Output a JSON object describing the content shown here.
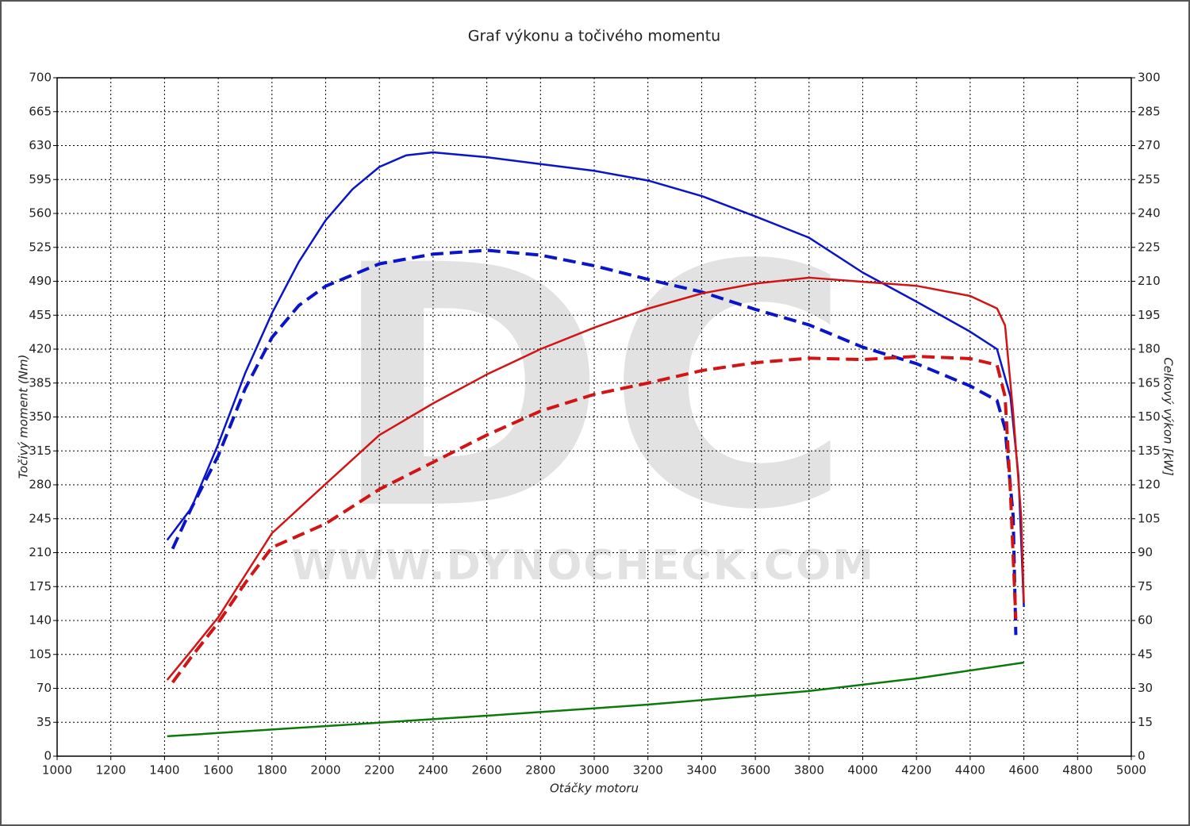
{
  "chart_data": {
    "type": "line",
    "title": "Graf výkonu a točivého momentu",
    "x_label": "Otáčky motoru",
    "y_label": "Točivý moment (Nm)",
    "y2_label": "Celkový výkon [kW]",
    "watermark": "DC",
    "watermark_url": "WWW.DYNOCHECK.COM",
    "xlim": [
      1000,
      5000
    ],
    "xticks": [
      1000,
      1200,
      1400,
      1600,
      1800,
      2000,
      2200,
      2400,
      2600,
      2800,
      3000,
      3200,
      3400,
      3600,
      3800,
      4000,
      4200,
      4400,
      4600,
      4800,
      5000
    ],
    "ylim": [
      0,
      700
    ],
    "yticks": [
      0,
      35,
      70,
      105,
      140,
      175,
      210,
      245,
      280,
      315,
      350,
      385,
      420,
      455,
      490,
      525,
      560,
      595,
      630,
      665,
      700
    ],
    "y2lim": [
      0,
      300
    ],
    "y2ticks": [
      0,
      15,
      30,
      45,
      60,
      75,
      90,
      105,
      120,
      135,
      150,
      165,
      180,
      195,
      210,
      225,
      240,
      255,
      270,
      285,
      300
    ],
    "grid": true,
    "series": [
      {
        "color": "#0a14c8",
        "dashed": false,
        "axis": "y",
        "x": [
          1410,
          1500,
          1600,
          1700,
          1800,
          1900,
          2000,
          2100,
          2200,
          2300,
          2400,
          2600,
          2800,
          3000,
          3200,
          3400,
          3600,
          3800,
          4000,
          4200,
          4400,
          4500,
          4550,
          4580,
          4600
        ],
        "values": [
          223,
          256,
          322,
          395,
          457,
          510,
          553,
          585,
          608,
          620,
          623,
          618,
          611,
          604,
          594,
          578,
          557,
          535,
          499,
          469,
          438,
          420,
          371,
          289,
          154
        ]
      },
      {
        "color": "#0a14c8",
        "dashed": true,
        "axis": "y",
        "x": [
          1430,
          1500,
          1600,
          1700,
          1800,
          1900,
          2000,
          2200,
          2400,
          2600,
          2800,
          3000,
          3200,
          3400,
          3600,
          3800,
          4000,
          4200,
          4400,
          4500,
          4530,
          4560,
          4570
        ],
        "values": [
          214,
          256,
          310,
          379,
          432,
          465,
          485,
          508,
          518,
          522,
          517,
          506,
          492,
          479,
          461,
          445,
          422,
          405,
          382,
          367,
          338,
          248,
          125
        ]
      },
      {
        "color": "#d21414",
        "dashed": false,
        "axis": "y2",
        "x": [
          1410,
          1500,
          1600,
          1700,
          1800,
          2000,
          2200,
          2400,
          2600,
          2800,
          3000,
          3200,
          3400,
          3600,
          3800,
          4000,
          4200,
          4400,
          4500,
          4530,
          4560,
          4590,
          4600
        ],
        "values": [
          33.7,
          46.7,
          61.4,
          80,
          98.6,
          120.4,
          142,
          156,
          168.8,
          180,
          189.5,
          197.9,
          204.6,
          209,
          211.6,
          209.8,
          208,
          203.5,
          198,
          190.5,
          152,
          106,
          67.7
        ]
      },
      {
        "color": "#d21414",
        "dashed": true,
        "axis": "y2",
        "x": [
          1430,
          1500,
          1600,
          1700,
          1800,
          2000,
          2200,
          2400,
          2600,
          2800,
          3000,
          3200,
          3400,
          3600,
          3800,
          4000,
          4200,
          4400,
          4500,
          4530,
          4550,
          4570
        ],
        "values": [
          32.6,
          43.9,
          59,
          76.5,
          92.3,
          102.8,
          118,
          130,
          142,
          152.6,
          160,
          165,
          170.5,
          174,
          176,
          175.4,
          176.8,
          175.8,
          173,
          159,
          116.8,
          60.7
        ]
      },
      {
        "color": "#0a7a0a",
        "dashed": false,
        "axis": "y2",
        "x": [
          1410,
          2000,
          2600,
          3200,
          3800,
          4200,
          4600
        ],
        "values": [
          8.8,
          13.3,
          17.9,
          22.8,
          28.8,
          34.4,
          41.4
        ]
      }
    ]
  }
}
